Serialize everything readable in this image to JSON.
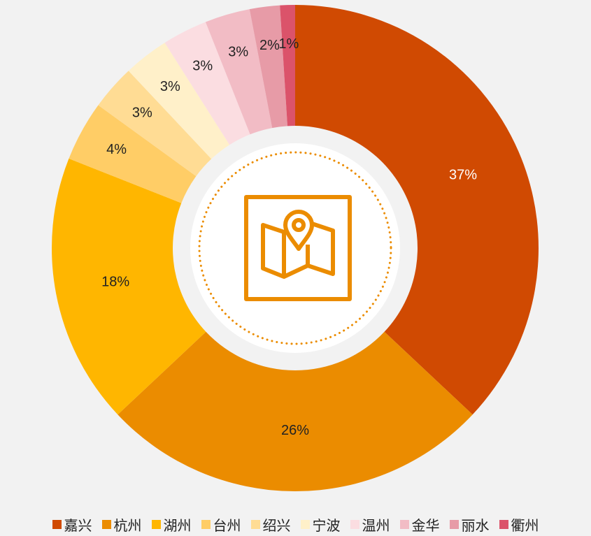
{
  "chart_data": {
    "type": "donut",
    "categories": [
      "嘉兴",
      "杭州",
      "湖州",
      "台州",
      "绍兴",
      "宁波",
      "温州",
      "金华",
      "丽水",
      "衢州"
    ],
    "values": [
      37,
      26,
      18,
      4,
      3,
      3,
      3,
      3,
      2,
      1
    ],
    "value_labels": [
      "37%",
      "26%",
      "18%",
      "4%",
      "3%",
      "3%",
      "3%",
      "3%",
      "2%",
      "1%"
    ],
    "colors": [
      "#d04a02",
      "#eb8c00",
      "#ffb600",
      "#ffcd66",
      "#ffdc94",
      "#fff0c9",
      "#fbdde1",
      "#f2bcc5",
      "#e79ba7",
      "#db536a"
    ],
    "legend": "bottom"
  }
}
